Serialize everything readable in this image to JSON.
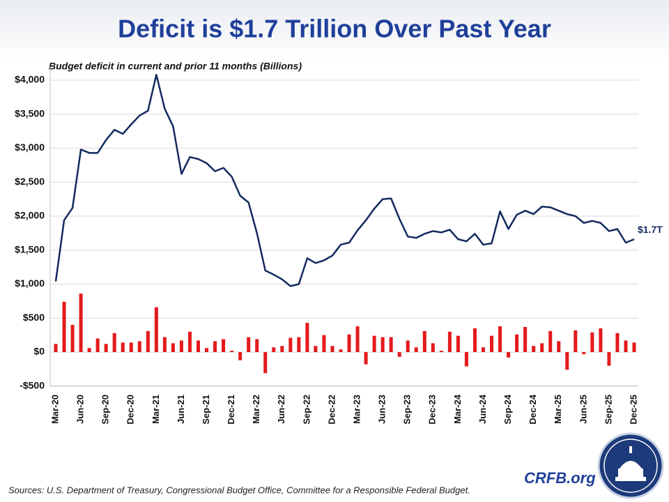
{
  "chart_data": {
    "type": "combo",
    "title": "Deficit is $1.7 Trillion Over Past Year",
    "subtitle": "Budget deficit in current and prior 11 months (Billions)",
    "annotation": "$1.7T",
    "source": "Sources: U.S. Department of Treasury, Congressional Budget Office, Committee for a Responsible Federal Budget.",
    "brand": "CRFB.org",
    "categories": [
      "Mar-20",
      null,
      null,
      "Jun-20",
      null,
      null,
      "Sep-20",
      null,
      null,
      "Dec-20",
      null,
      null,
      "Mar-21",
      null,
      null,
      "Jun-21",
      null,
      null,
      "Sep-21",
      null,
      null,
      "Dec-21",
      null,
      null,
      "Mar-22",
      null,
      null,
      "Jun-22",
      null,
      null,
      "Sep-22",
      null,
      null,
      "Dec-22",
      null,
      null,
      "Mar-23",
      null,
      null,
      "Jun-23",
      null,
      null,
      "Sep-23",
      null,
      null,
      "Dec-23",
      null,
      null,
      "Mar-24",
      null,
      null,
      "Jun-24",
      null,
      null,
      "Sep-24",
      null,
      null,
      "Dec-24",
      null,
      null,
      "Mar-25",
      null,
      null,
      "Jun-25",
      null,
      null,
      "Sep-25",
      null,
      null,
      "Dec-25"
    ],
    "series": [
      {
        "type": "bar",
        "color": "#e31a1c",
        "values": [
          120,
          740,
          400,
          860,
          60,
          200,
          120,
          280,
          140,
          140,
          160,
          310,
          660,
          220,
          130,
          170,
          300,
          170,
          60,
          160,
          190,
          20,
          -120,
          220,
          190,
          -310,
          70,
          90,
          210,
          220,
          430,
          90,
          250,
          90,
          40,
          260,
          380,
          -180,
          240,
          220,
          220,
          -70,
          170,
          70,
          310,
          130,
          20,
          300,
          240,
          -210,
          350,
          70,
          240,
          380,
          -80,
          260,
          370,
          90,
          130,
          310,
          160,
          -260,
          320,
          -30,
          290,
          350,
          -200,
          280,
          170,
          140
        ]
      },
      {
        "type": "line",
        "color": "#13295e",
        "values": [
          1040,
          1940,
          2120,
          2980,
          2930,
          2930,
          3120,
          3270,
          3210,
          3350,
          3480,
          3550,
          4080,
          3580,
          3320,
          2620,
          2870,
          2840,
          2780,
          2660,
          2710,
          2580,
          2300,
          2200,
          1750,
          1200,
          1140,
          1070,
          970,
          1000,
          1380,
          1310,
          1350,
          1420,
          1580,
          1610,
          1790,
          1940,
          2110,
          2250,
          2260,
          1960,
          1700,
          1680,
          1740,
          1780,
          1760,
          1800,
          1660,
          1630,
          1740,
          1580,
          1600,
          2070,
          1810,
          2020,
          2080,
          2030,
          2140,
          2130,
          2080,
          2030,
          2000,
          1900,
          1930,
          1900,
          1780,
          1810,
          1610,
          1660
        ]
      }
    ],
    "ylim": [
      -500,
      4200
    ],
    "yticks": [
      {
        "value": -500,
        "label": "-$500"
      },
      {
        "value": 0,
        "label": "$0"
      },
      {
        "value": 500,
        "label": "$500"
      },
      {
        "value": 1000,
        "label": "$1,000"
      },
      {
        "value": 1500,
        "label": "$1,500"
      },
      {
        "value": 2000,
        "label": "$2,000"
      },
      {
        "value": 2500,
        "label": "$2,500"
      },
      {
        "value": 3000,
        "label": "$3,000"
      },
      {
        "value": 3500,
        "label": "$3,500"
      },
      {
        "value": 4000,
        "label": "$4,000"
      }
    ],
    "grid": true
  }
}
